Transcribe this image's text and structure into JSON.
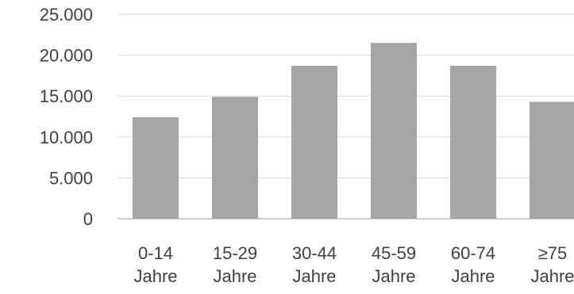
{
  "chart_data": {
    "type": "bar",
    "categories": [
      "0-14 Jahre",
      "15-29 Jahre",
      "30-44 Jahre",
      "45-59 Jahre",
      "60-74 Jahre",
      "≥75 Jahre"
    ],
    "category_lines": [
      [
        "0-14",
        "Jahre"
      ],
      [
        "15-29",
        "Jahre"
      ],
      [
        "30-44",
        "Jahre"
      ],
      [
        "45-59",
        "Jahre"
      ],
      [
        "60-74",
        "Jahre"
      ],
      [
        "≥75",
        "Jahre"
      ]
    ],
    "values": [
      12400,
      14900,
      18700,
      21500,
      18700,
      14300
    ],
    "yticks": [
      0,
      5000,
      10000,
      15000,
      20000,
      25000
    ],
    "ytick_labels": [
      "0",
      "5.000",
      "10.000",
      "15.000",
      "20.000",
      "25.000"
    ],
    "ylim": [
      0,
      25000
    ],
    "grid": true,
    "bar_color": "#a5a5a5",
    "grid_color": "#d9d9d9",
    "text_color": "#404040"
  }
}
